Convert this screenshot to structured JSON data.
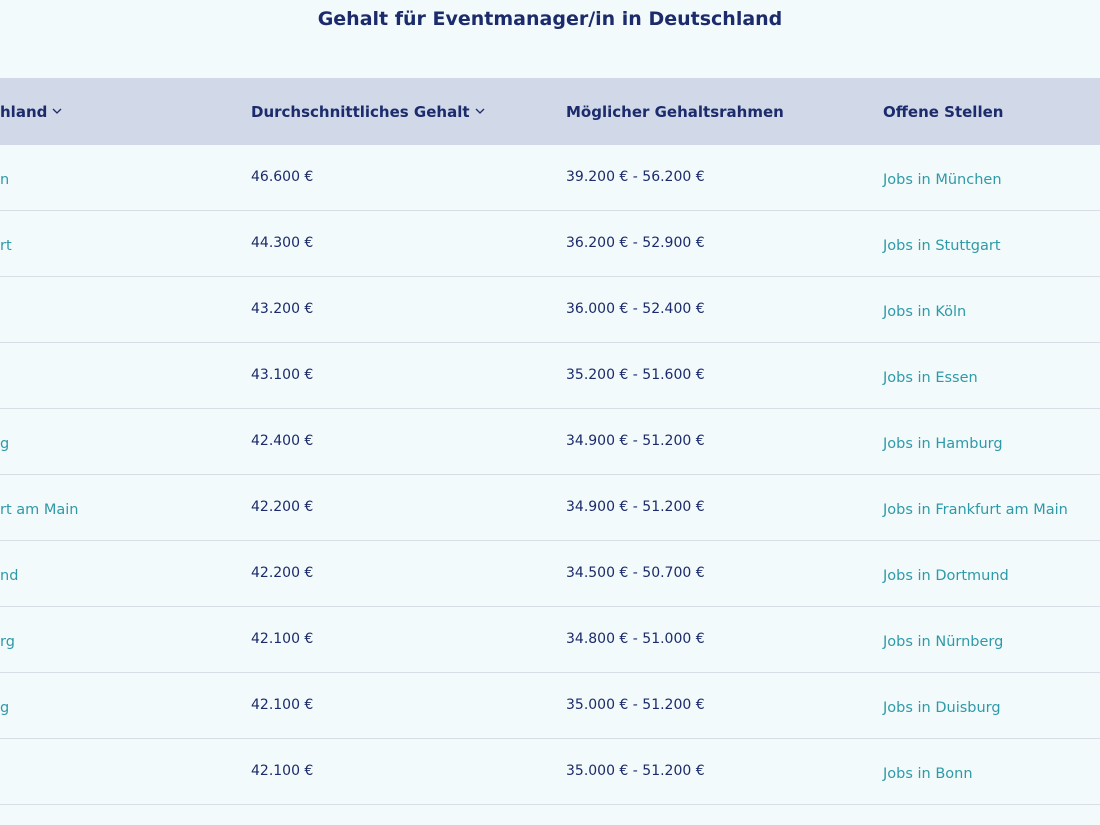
{
  "title": "Gehalt für Eventmanager/in in Deutschland",
  "table": {
    "header": [
      "hland",
      "Durchschnittliches Gehalt",
      "Möglicher Gehaltsrahmen",
      "Offene Stellen"
    ],
    "rows": [
      {
        "city": "n",
        "average": "46.600 €",
        "range": "39.200 € - 56.200 €",
        "link": "Jobs in München"
      },
      {
        "city": "rt",
        "average": "44.300 €",
        "range": "36.200 € - 52.900 €",
        "link": "Jobs in Stuttgart"
      },
      {
        "average": "43.200 €",
        "range": "36.000 € - 52.400 €",
        "link": "Jobs in Köln"
      },
      {
        "average": "43.100 €",
        "range": "35.200 € - 51.600 €",
        "link": "Jobs in Essen"
      },
      {
        "city": "g",
        "average": "42.400 €",
        "range": "34.900 € - 51.200 €",
        "link": "Jobs in Hamburg"
      },
      {
        "city": "rt am Main",
        "average": "42.200 €",
        "range": "34.900 € - 51.200 €",
        "link": "Jobs in Frankfurt am Main"
      },
      {
        "city": "nd",
        "average": "42.200 €",
        "range": "34.500 € - 50.700 €",
        "link": "Jobs in Dortmund"
      },
      {
        "city": "rg",
        "average": "42.100 €",
        "range": "34.800 € - 51.000 €",
        "link": "Jobs in Nürnberg"
      },
      {
        "city": "g",
        "average": "42.100 €",
        "range": "35.000 € - 51.200 €",
        "link": "Jobs in Duisburg"
      },
      {
        "average": "42.100 €",
        "range": "35.000 € - 51.200 €",
        "link": "Jobs in Bonn"
      }
    ]
  }
}
